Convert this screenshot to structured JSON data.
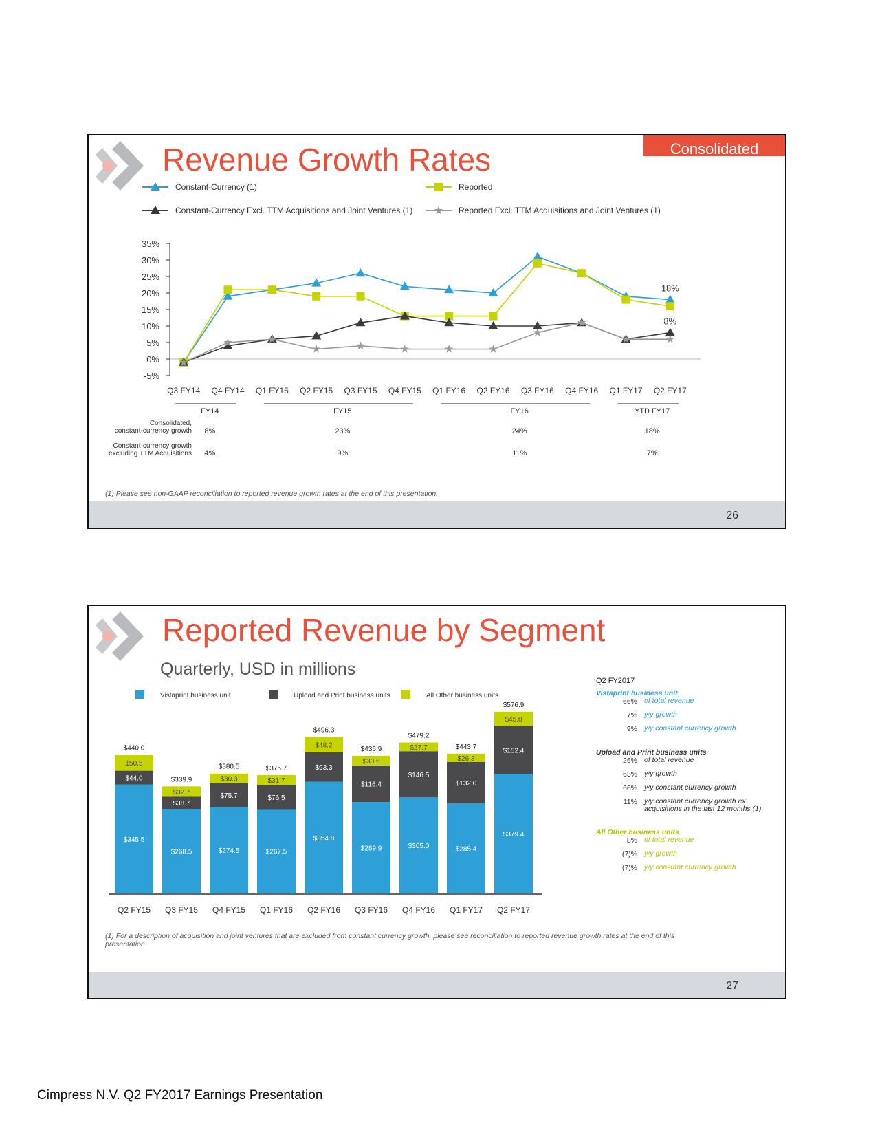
{
  "page_caption": "Cimpress N.V. Q2 FY2017 Earnings Presentation",
  "colors": {
    "accent": "#e8503a",
    "blue": "#2f9fd8",
    "dark": "#4a4a4d",
    "lime": "#c5d400",
    "grey_line": "#9a9a9a"
  },
  "slide1": {
    "title": "Revenue Growth Rates",
    "badge": "Consolidated",
    "page_number": "26",
    "footnote": "(1) Please see non-GAAP reconciliation to reported revenue growth rates at the end of this presentation.",
    "summary": {
      "row_labels": [
        [
          "Consolidated,",
          "constant-currency growth"
        ],
        [
          "Constant-currency growth",
          "excluding TTM Acquisitions"
        ]
      ],
      "periods": [
        {
          "label": "FY14",
          "values": [
            "8%",
            "4%"
          ]
        },
        {
          "label": "FY15",
          "values": [
            "23%",
            "9%"
          ]
        },
        {
          "label": "FY16",
          "values": [
            "24%",
            "11%"
          ]
        },
        {
          "label": "YTD FY17",
          "values": [
            "18%",
            "7%"
          ]
        }
      ]
    }
  },
  "slide2": {
    "title": "Reported Revenue by Segment",
    "subtitle": "Quarterly, USD in millions",
    "page_number": "27",
    "footnote": "(1) For a description of acquisition and joint ventures that are excluded from constant currency growth, please see reconciliation to reported revenue growth rates at the end of this presentation.",
    "panel": {
      "heading": "Q2 FY2017",
      "segments": [
        {
          "name": "Vistaprint business unit",
          "color": "#2f9fd8",
          "rows": [
            [
              "66%",
              "of total revenue"
            ],
            [
              "7%",
              "y/y growth"
            ],
            [
              "9%",
              "y/y constant currency growth"
            ]
          ]
        },
        {
          "name": "Upload and Print business units",
          "color": "#333333",
          "rows": [
            [
              "26%",
              "of total revenue"
            ],
            [
              "63%",
              "y/y growth"
            ],
            [
              "66%",
              "y/y constant currency growth"
            ],
            [
              "11%",
              "y/y constant currency growth ex. acquisitions in the last 12 months (1)"
            ]
          ]
        },
        {
          "name": "All Other business units",
          "color": "#b5c400",
          "rows": [
            [
              "8%",
              "of total revenue"
            ],
            [
              "(7)%",
              "y/y growth"
            ],
            [
              "(7)%",
              "y/y constant currency growth"
            ]
          ]
        }
      ]
    }
  },
  "chart_data": [
    {
      "type": "line",
      "x": [
        "Q3 FY14",
        "Q4 FY14",
        "Q1 FY15",
        "Q2 FY15",
        "Q3 FY15",
        "Q4 FY15",
        "Q1 FY16",
        "Q2 FY16",
        "Q3 FY16",
        "Q4 FY16",
        "Q1 FY17",
        "Q2 FY17"
      ],
      "yticks": [
        "35%",
        "30%",
        "25%",
        "20%",
        "15%",
        "10%",
        "5%",
        "0%",
        "-5%"
      ],
      "ylim": [
        -5,
        35
      ],
      "legend_position": "top",
      "series": [
        {
          "name": "Constant-Currency (1)",
          "color": "#2f9fd8",
          "marker": "triangle",
          "values": [
            -1,
            19,
            21,
            23,
            26,
            22,
            21,
            20,
            31,
            26,
            19,
            18
          ]
        },
        {
          "name": "Reported",
          "color": "#c5d400",
          "marker": "square",
          "values": [
            -1,
            21,
            21,
            19,
            19,
            13,
            13,
            13,
            29,
            26,
            18,
            16
          ]
        },
        {
          "name": "Constant-Currency Excl. TTM Acquisitions and Joint Ventures (1)",
          "color": "#3a3a3d",
          "marker": "triangle",
          "values": [
            -1,
            4,
            6,
            7,
            11,
            13,
            11,
            10,
            10,
            11,
            6,
            8
          ]
        },
        {
          "name": "Reported Excl. TTM Acquisitions and Joint Ventures (1)",
          "color": "#9a9a9a",
          "marker": "star",
          "values": [
            -1,
            5,
            6,
            3,
            4,
            3,
            3,
            3,
            8,
            11,
            6,
            6
          ]
        }
      ],
      "annotations": [
        {
          "x": "Q2 FY17",
          "text": "18%"
        },
        {
          "x": "Q2 FY17",
          "text": "8%"
        }
      ]
    },
    {
      "type": "bar",
      "stacked": true,
      "categories": [
        "Q2 FY15",
        "Q3 FY15",
        "Q4 FY15",
        "Q1 FY16",
        "Q2 FY16",
        "Q3 FY16",
        "Q4 FY16",
        "Q1 FY17",
        "Q2 FY17"
      ],
      "legend_position": "top",
      "series": [
        {
          "name": "Vistaprint business unit",
          "color": "#2f9fd8",
          "values": [
            345.5,
            268.5,
            274.5,
            267.5,
            354.8,
            289.9,
            305.0,
            285.4,
            379.4
          ],
          "labels": [
            "$345.5",
            "$268.5",
            "$274.5",
            "$267.5",
            "$354.8",
            "$289.9",
            "$305.0",
            "$285.4",
            "$379.4"
          ]
        },
        {
          "name": "Upload and Print business units",
          "color": "#4a4a4d",
          "values": [
            44.0,
            38.7,
            75.7,
            76.5,
            93.3,
            116.4,
            146.5,
            132.0,
            152.4
          ],
          "labels": [
            "$44.0",
            "$38.7",
            "$75.7",
            "$76.5",
            "$93.3",
            "$116.4",
            "$146.5",
            "$132.0",
            "$152.4"
          ]
        },
        {
          "name": "All Other business units",
          "color": "#c5d400",
          "values": [
            50.5,
            32.7,
            30.3,
            31.7,
            48.2,
            30.6,
            27.7,
            26.3,
            45.0
          ],
          "labels": [
            "$50.5",
            "$32.7",
            "$30.3",
            "$31.7",
            "$48.2",
            "$30.6",
            "$27.7",
            "$26.3",
            "$45.0"
          ]
        }
      ],
      "totals": [
        "$440.0",
        "$339.9",
        "$380.5",
        "$375.7",
        "$496.3",
        "$436.9",
        "$479.2",
        "$443.7",
        "$576.9"
      ]
    }
  ]
}
